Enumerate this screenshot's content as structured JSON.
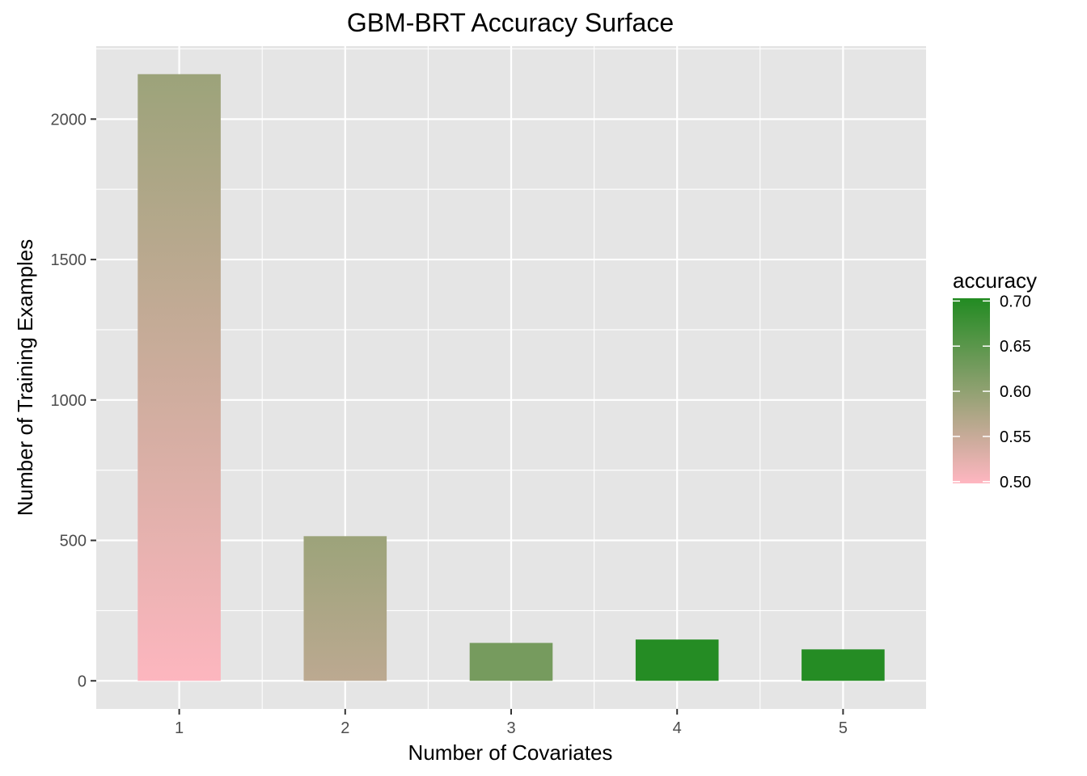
{
  "chart_data": {
    "type": "bar",
    "title": "GBM-BRT Accuracy Surface",
    "xlabel": "Number of Covariates",
    "ylabel": "Number of Training Examples",
    "categories": [
      "1",
      "2",
      "3",
      "4",
      "5"
    ],
    "values": [
      2160,
      515,
      135,
      147,
      112
    ],
    "ylim": [
      -100,
      2260
    ],
    "yticks": [
      0,
      500,
      1000,
      1500,
      2000
    ],
    "y_tick_labels": [
      "0",
      "500",
      "1000",
      "1500",
      "2000"
    ],
    "grid": true,
    "fill_gradient": {
      "description": "bar fill colored by accuracy",
      "bar_accuracy_ranges": [
        [
          0.5,
          0.59
        ],
        [
          0.56,
          0.59
        ],
        [
          0.625,
          0.625
        ],
        [
          0.7,
          0.7
        ],
        [
          0.7,
          0.7
        ]
      ]
    },
    "legend": {
      "title": "accuracy",
      "placement": "right",
      "ticks": [
        0.5,
        0.55,
        0.6,
        0.65,
        0.7
      ],
      "tick_labels": [
        "0.50",
        "0.55",
        "0.60",
        "0.65",
        "0.70"
      ],
      "range": [
        0.498,
        0.703
      ],
      "low_color": "#ffb6c1",
      "high_color": "#228b22"
    },
    "colors": {
      "panel_background": "#e5e5e5",
      "grid_line": "#ffffff"
    }
  }
}
